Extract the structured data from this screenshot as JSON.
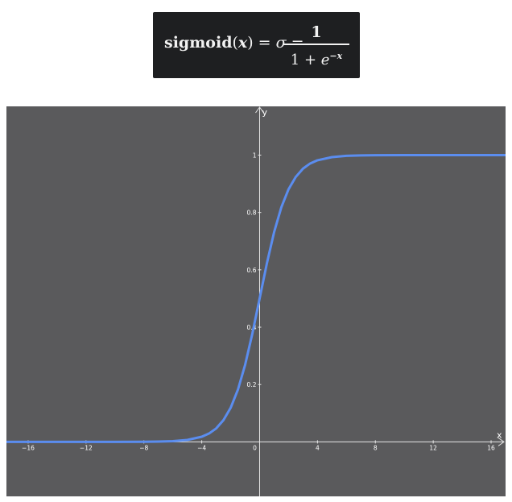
{
  "formula": {
    "lhs_function": "sigmoid",
    "lhs_open_paren": "(",
    "lhs_var": "x",
    "lhs_close_paren": ")",
    "equals_1": "=",
    "sigma": "σ",
    "equals_2": "=",
    "numerator": "1",
    "denominator_prefix": "1 + ",
    "denominator_base": "e",
    "denominator_exponent": "−x"
  },
  "chart_data": {
    "type": "line",
    "function": "1/(1+e^(-x))",
    "xlabel": "x",
    "ylabel": "y",
    "xlim": [
      -17.5,
      17
    ],
    "ylim": [
      -0.19,
      1.17
    ],
    "x_ticks": [
      -16,
      -12,
      -8,
      -4,
      0,
      4,
      8,
      12,
      16
    ],
    "x_tick_labels": [
      "−16",
      "−12",
      "−8",
      "−4",
      "0",
      "4",
      "8",
      "12",
      "16"
    ],
    "y_ticks": [
      0.2,
      0.4,
      0.6,
      0.8,
      1
    ],
    "y_tick_labels": [
      "0.2",
      "0.4",
      "0.6",
      "0.8",
      "1"
    ],
    "grid": false,
    "series": [
      {
        "x": [
          -17.5,
          -16,
          -14,
          -12,
          -10,
          -8,
          -7,
          -6,
          -5,
          -4,
          -3.5,
          -3,
          -2.5,
          -2,
          -1.5,
          -1,
          -0.5,
          0,
          0.5,
          1,
          1.5,
          2,
          2.5,
          3,
          3.5,
          4,
          5,
          6,
          7,
          8,
          10,
          12,
          14,
          16,
          17
        ],
        "y": [
          0.0,
          0.0,
          0.0,
          0.0,
          0.0,
          0.0003,
          0.0009,
          0.0025,
          0.0067,
          0.018,
          0.029,
          0.047,
          0.076,
          0.119,
          0.182,
          0.269,
          0.378,
          0.5,
          0.622,
          0.731,
          0.818,
          0.881,
          0.924,
          0.953,
          0.971,
          0.982,
          0.993,
          0.9975,
          0.9991,
          0.9997,
          1.0,
          1.0,
          1.0,
          1.0,
          1.0
        ],
        "color": "#5b8def"
      }
    ],
    "background_color": "#5a5a5c",
    "axis_color": "#e6e6e6",
    "label_color": "#ffffff"
  }
}
